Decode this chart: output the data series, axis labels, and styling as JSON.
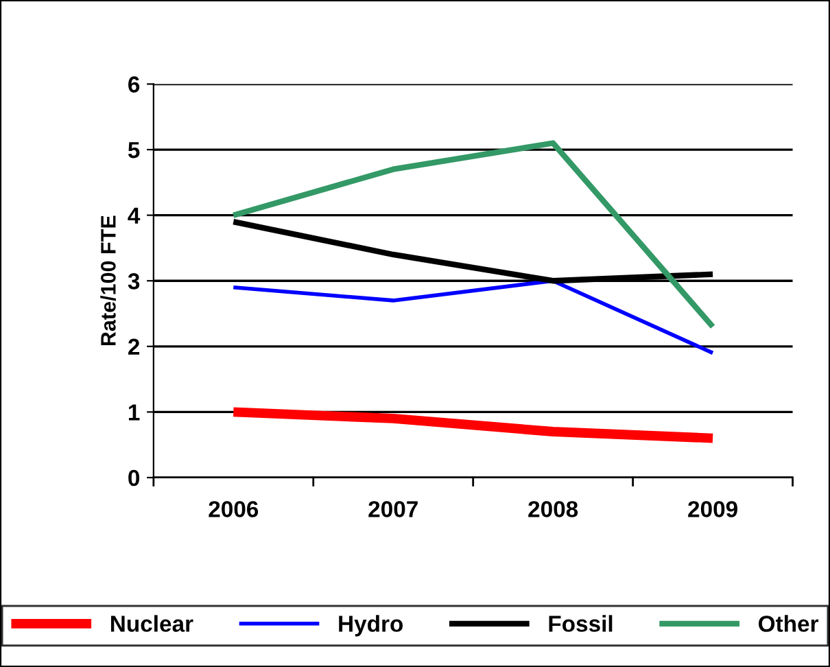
{
  "chart_data": {
    "type": "line",
    "ylabel": "Rate/100 FTE",
    "categories": [
      "2006",
      "2007",
      "2008",
      "2009"
    ],
    "series": [
      {
        "name": "Nuclear",
        "color": "#ff0000",
        "values": [
          1.0,
          0.9,
          0.7,
          0.6
        ]
      },
      {
        "name": "Hydro",
        "color": "#0000ff",
        "values": [
          2.9,
          2.7,
          3.0,
          1.9
        ]
      },
      {
        "name": "Fossil",
        "color": "#000000",
        "values": [
          3.9,
          3.4,
          3.0,
          3.1
        ]
      },
      {
        "name": "Other",
        "color": "#339966",
        "values": [
          4.0,
          4.7,
          5.1,
          2.3
        ]
      }
    ],
    "ylim": [
      0,
      6
    ],
    "yticks": [
      0,
      1,
      2,
      3,
      4,
      5,
      6
    ],
    "grid": "y",
    "legend": "bottom",
    "marker": "none",
    "line_style": "solid"
  }
}
